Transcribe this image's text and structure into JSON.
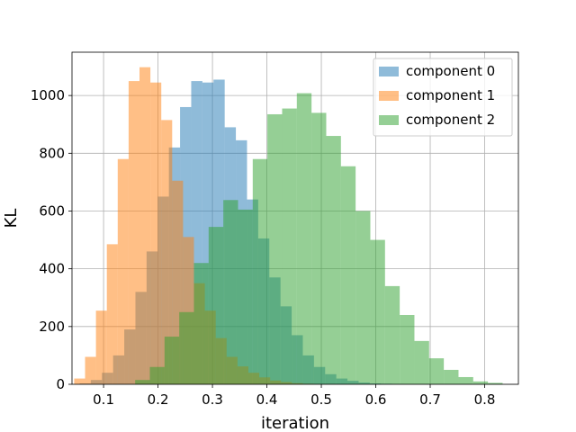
{
  "chart_data": {
    "type": "bar",
    "title": "",
    "xlabel": "iteration",
    "ylabel": "KL",
    "xlim": [
      0.042,
      0.862
    ],
    "ylim": [
      0,
      1150
    ],
    "xticks": [
      0.1,
      0.2,
      0.3,
      0.4,
      0.5,
      0.6,
      0.7,
      0.8
    ],
    "xtick_labels": [
      "0.1",
      "0.2",
      "0.3",
      "0.4",
      "0.5",
      "0.6",
      "0.7",
      "0.8"
    ],
    "yticks": [
      0,
      200,
      400,
      600,
      800,
      1000
    ],
    "ytick_labels": [
      "0",
      "200",
      "400",
      "600",
      "800",
      "1000"
    ],
    "grid": true,
    "legend_position": "top-right",
    "series": [
      {
        "name": "component 0",
        "color": "#1f77b4",
        "opacity": 0.5,
        "bin_edges": [
          0.056,
          0.0765,
          0.097,
          0.1175,
          0.138,
          0.1585,
          0.179,
          0.1995,
          0.22,
          0.2405,
          0.261,
          0.2815,
          0.302,
          0.3225,
          0.343,
          0.3635,
          0.384,
          0.4045,
          0.425,
          0.4455,
          0.466,
          0.4865,
          0.507,
          0.5275,
          0.548,
          0.5685,
          0.589,
          0.6095,
          0.63,
          0.6505
        ],
        "counts": [
          3,
          15,
          40,
          100,
          190,
          320,
          460,
          650,
          820,
          960,
          1050,
          1045,
          1055,
          890,
          845,
          640,
          505,
          370,
          270,
          170,
          100,
          60,
          35,
          20,
          12,
          6,
          3,
          2,
          1
        ]
      },
      {
        "name": "component 1",
        "color": "#ff7f0e",
        "opacity": 0.5,
        "bin_edges": [
          0.046,
          0.066,
          0.086,
          0.106,
          0.126,
          0.146,
          0.166,
          0.186,
          0.206,
          0.226,
          0.246,
          0.266,
          0.286,
          0.306,
          0.326,
          0.346,
          0.366,
          0.386,
          0.406,
          0.426,
          0.446,
          0.466,
          0.486,
          0.506,
          0.526,
          0.546,
          0.566
        ],
        "counts": [
          20,
          95,
          255,
          485,
          780,
          1050,
          1098,
          1045,
          915,
          705,
          510,
          350,
          255,
          160,
          95,
          62,
          40,
          24,
          13,
          8,
          4,
          2,
          1,
          1,
          0,
          0
        ]
      },
      {
        "name": "component 2",
        "color": "#2ca02c",
        "opacity": 0.5,
        "bin_edges": [
          0.158,
          0.185,
          0.212,
          0.239,
          0.266,
          0.293,
          0.32,
          0.347,
          0.374,
          0.401,
          0.428,
          0.455,
          0.482,
          0.509,
          0.536,
          0.563,
          0.59,
          0.617,
          0.644,
          0.671,
          0.698,
          0.725,
          0.752,
          0.779,
          0.806,
          0.833
        ],
        "counts": [
          15,
          60,
          165,
          250,
          420,
          545,
          638,
          605,
          780,
          935,
          955,
          1008,
          940,
          860,
          755,
          600,
          500,
          340,
          240,
          150,
          90,
          50,
          25,
          10,
          5
        ]
      }
    ]
  }
}
